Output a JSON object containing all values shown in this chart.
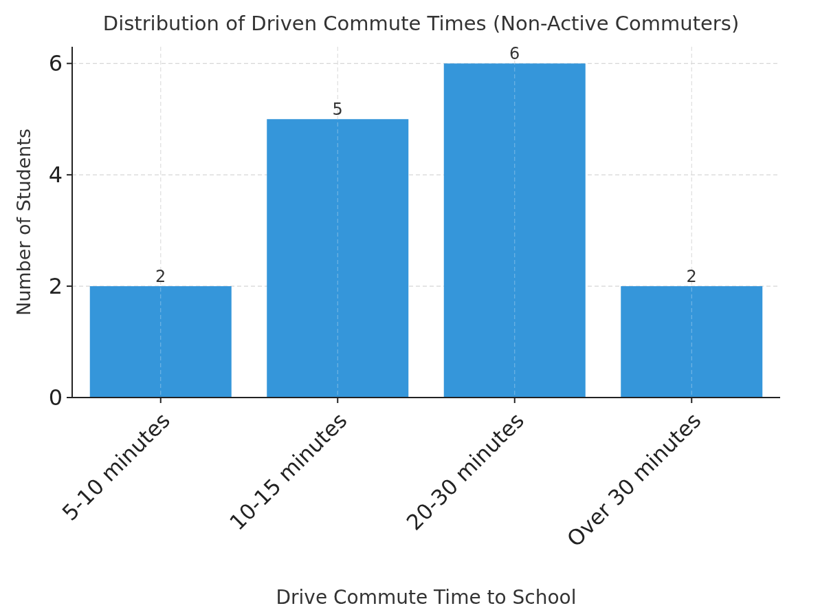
{
  "chart_data": {
    "type": "bar",
    "title": "Distribution of Driven Commute Times (Non-Active Commuters)",
    "xlabel": "Drive Commute Time to School",
    "ylabel": "Number of Students",
    "categories": [
      "5-10 minutes",
      "10-15 minutes",
      "20-30 minutes",
      "Over 30 minutes"
    ],
    "values": [
      2,
      5,
      6,
      2
    ],
    "color": "#3596da",
    "ylim": [
      0,
      6.3
    ],
    "yticks": [
      0,
      2,
      4,
      6
    ],
    "grid": true,
    "data_labels": true
  }
}
